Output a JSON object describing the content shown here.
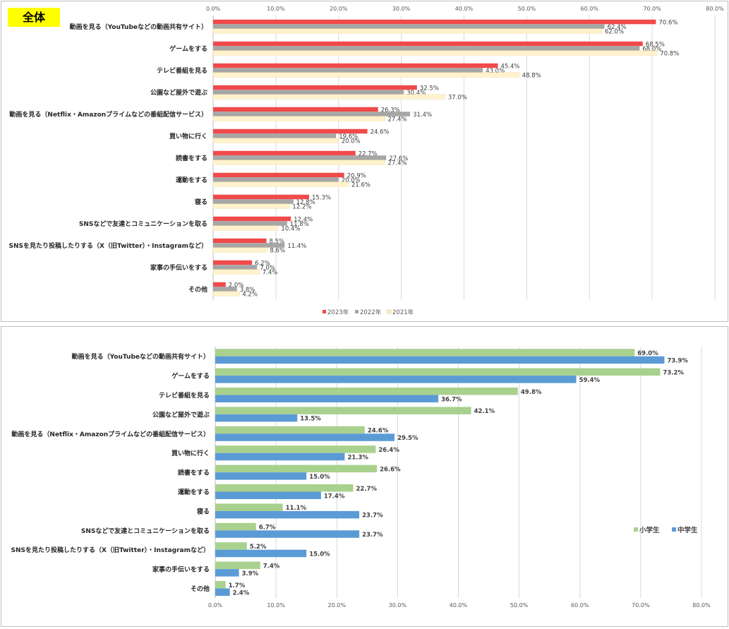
{
  "badge_label": "全体",
  "colors": {
    "y2023": "#f04a4a",
    "y2022": "#a6a6a6",
    "y2021": "#fff2cc",
    "elementary": "#a9d18e",
    "junior": "#5b9bd5"
  },
  "chart_data": [
    {
      "type": "bar",
      "orientation": "horizontal",
      "title": "全体",
      "categories": [
        "動画を見る（YouTubeなどの動画共有サイト）",
        "ゲームをする",
        "テレビ番組を見る",
        "公園など屋外で遊ぶ",
        "動画を見る（Netflix・Amazonプライムなどの番組配信サービス）",
        "買い物に行く",
        "読書をする",
        "運動をする",
        "寝る",
        "SNSなどで友達とコミュニケーションを取る",
        "SNSを見たり投稿したりする（X（旧Twitter）・Instagramなど）",
        "家事の手伝いをする",
        "その他"
      ],
      "series": [
        {
          "name": "2023年",
          "values": [
            70.6,
            68.5,
            45.4,
            32.5,
            26.3,
            24.6,
            22.7,
            20.9,
            15.3,
            12.4,
            8.5,
            6.2,
            2.0
          ]
        },
        {
          "name": "2022年",
          "values": [
            62.4,
            68.0,
            43.0,
            30.4,
            31.4,
            19.6,
            27.6,
            20.0,
            12.8,
            11.8,
            11.4,
            7.0,
            3.8
          ]
        },
        {
          "name": "2021年",
          "values": [
            62.0,
            70.8,
            48.8,
            37.0,
            27.4,
            20.0,
            27.4,
            21.6,
            12.2,
            10.4,
            8.6,
            7.4,
            4.2
          ]
        }
      ],
      "xlim": [
        0,
        80
      ],
      "ticks": [
        "0.0%",
        "10.0%",
        "20.0%",
        "30.0%",
        "40.0%",
        "50.0%",
        "60.0%",
        "70.0%",
        "80.0%"
      ],
      "legend_position": "bottom"
    },
    {
      "type": "bar",
      "orientation": "horizontal",
      "title": "",
      "categories": [
        "動画を見る（YouTubeなどの動画共有サイト）",
        "ゲームをする",
        "テレビ番組を見る",
        "公園など屋外で遊ぶ",
        "動画を見る（Netflix・Amazonプライムなどの番組配信サービス）",
        "買い物に行く",
        "読書をする",
        "運動をする",
        "寝る",
        "SNSなどで友達とコミュニケーションを取る",
        "SNSを見たり投稿したりする（X（旧Twitter）・Instagramなど）",
        "家事の手伝いをする",
        "その他"
      ],
      "series": [
        {
          "name": "小学生",
          "values": [
            69.0,
            73.2,
            49.8,
            42.1,
            24.6,
            26.4,
            26.6,
            22.7,
            11.1,
            6.7,
            5.2,
            7.4,
            1.7
          ]
        },
        {
          "name": "中学生",
          "values": [
            73.9,
            59.4,
            36.7,
            13.5,
            29.5,
            21.3,
            15.0,
            17.4,
            23.7,
            23.7,
            15.0,
            3.9,
            2.4
          ]
        }
      ],
      "xlim": [
        0,
        80
      ],
      "ticks": [
        "0.0%",
        "10.0%",
        "20.0%",
        "30.0%",
        "40.0%",
        "50.0%",
        "60.0%",
        "70.0%",
        "80.0%"
      ],
      "legend_position": "right"
    }
  ]
}
